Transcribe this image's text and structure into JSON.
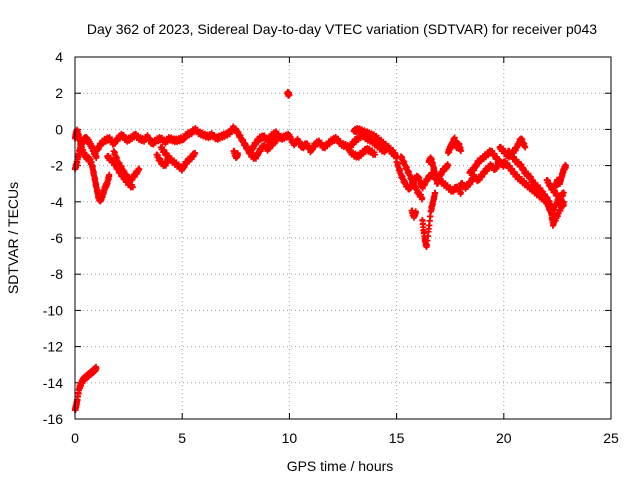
{
  "chart_data": {
    "type": "scatter",
    "title": "Day 362 of 2023, Sidereal Day-to-day VTEC variation (SDTVAR) for receiver p043",
    "xlabel": "GPS time / hours",
    "ylabel": "SDTVAR / TECUs",
    "xlim": [
      0,
      25
    ],
    "ylim": [
      -16,
      4
    ],
    "xticks": [
      0,
      5,
      10,
      15,
      20,
      25
    ],
    "yticks": [
      4,
      2,
      0,
      -2,
      -4,
      -6,
      -8,
      -10,
      -12,
      -14,
      -16
    ],
    "grid": true,
    "marker": "+",
    "series": [
      {
        "name": "SDTVAR",
        "color": "#ff0000",
        "segments": [
          {
            "x": [
              0.0,
              0.05,
              0.1,
              0.2,
              0.3,
              0.4,
              0.5,
              0.6,
              0.7,
              0.8,
              0.9,
              1.0
            ],
            "y": [
              -15.5,
              -15.3,
              -15.0,
              -14.3,
              -14.0,
              -13.8,
              -13.7,
              -13.6,
              -13.5,
              -13.4,
              -13.3,
              -13.2
            ]
          },
          {
            "x": [
              0.0,
              0.05,
              0.1,
              0.15,
              0.2,
              0.3,
              0.4,
              0.5,
              0.6,
              0.7,
              0.8,
              0.9,
              1.0,
              1.1,
              1.2,
              1.3,
              1.4,
              1.5,
              1.6
            ],
            "y": [
              -0.5,
              -0.2,
              -0.1,
              -0.3,
              -0.5,
              -1.0,
              -1.3,
              -1.5,
              -1.6,
              -1.7,
              -2.0,
              -2.6,
              -3.2,
              -3.8,
              -3.9,
              -3.6,
              -3.2,
              -3.0,
              -2.5
            ]
          },
          {
            "x": [
              0.0,
              0.1,
              0.2,
              0.3,
              0.4,
              0.5,
              0.6,
              0.7,
              0.8,
              0.9,
              1.0
            ],
            "y": [
              -2.2,
              -1.8,
              -1.2,
              -0.8,
              -0.6,
              -0.5,
              -0.6,
              -0.8,
              -1.0,
              -1.3,
              -1.5
            ]
          },
          {
            "x": [
              1.0,
              1.2,
              1.4,
              1.6,
              1.8,
              2.0,
              2.2,
              2.4,
              2.6,
              2.8,
              3.0,
              3.2,
              3.4,
              3.6,
              3.8,
              4.0,
              4.2,
              4.4,
              4.6,
              4.8,
              5.0
            ],
            "y": [
              -1.2,
              -0.8,
              -0.6,
              -0.5,
              -0.8,
              -0.5,
              -0.3,
              -0.6,
              -0.5,
              -0.3,
              -0.5,
              -0.6,
              -0.4,
              -0.8,
              -0.6,
              -0.5,
              -0.7,
              -0.5,
              -0.6,
              -0.6,
              -0.5
            ]
          },
          {
            "x": [
              1.8,
              2.0,
              2.2,
              2.4,
              2.6,
              2.8,
              3.0
            ],
            "y": [
              -1.2,
              -1.8,
              -2.2,
              -2.6,
              -2.8,
              -2.5,
              -2.2
            ]
          },
          {
            "x": [
              1.5,
              1.7,
              1.9,
              2.1,
              2.3,
              2.5,
              2.7
            ],
            "y": [
              -1.5,
              -1.7,
              -2.0,
              -2.4,
              -2.7,
              -3.0,
              -3.2
            ]
          },
          {
            "x": [
              4.0,
              4.2,
              4.4,
              4.6,
              4.8,
              5.0,
              5.2,
              5.4,
              5.6
            ],
            "y": [
              -1.0,
              -1.3,
              -1.6,
              -1.8,
              -2.0,
              -2.2,
              -1.8,
              -1.6,
              -1.3
            ]
          },
          {
            "x": [
              3.8,
              4.0,
              4.2,
              4.4
            ],
            "y": [
              -1.4,
              -1.8,
              -2.0,
              -1.5
            ]
          },
          {
            "x": [
              5.0,
              5.2,
              5.4,
              5.6,
              5.8,
              6.0,
              6.2,
              6.4,
              6.6,
              6.8,
              7.0,
              7.2,
              7.4,
              7.6,
              7.8,
              8.0,
              8.2,
              8.4,
              8.6,
              8.8,
              9.0,
              9.2,
              9.4,
              9.6,
              9.8,
              10.0
            ],
            "y": [
              -0.6,
              -0.3,
              -0.2,
              0.0,
              -0.2,
              -0.3,
              -0.4,
              -0.3,
              -0.5,
              -0.4,
              -0.3,
              -0.2,
              0.1,
              -0.2,
              -0.6,
              -1.0,
              -1.2,
              -0.8,
              -0.5,
              -0.4,
              -0.6,
              -0.3,
              -0.2,
              -0.5,
              -0.4,
              -0.3
            ]
          },
          {
            "x": [
              7.4,
              7.5,
              7.6
            ],
            "y": [
              -1.2,
              -1.5,
              -1.4
            ]
          },
          {
            "x": [
              8.0,
              8.2,
              8.4,
              8.6,
              8.8,
              9.0,
              9.2,
              9.4
            ],
            "y": [
              -1.0,
              -1.4,
              -1.6,
              -1.2,
              -0.9,
              -1.1,
              -0.8,
              -0.6
            ]
          },
          {
            "x": [
              9.9,
              10.0
            ],
            "y": [
              2.0,
              1.9
            ]
          },
          {
            "x": [
              10.0,
              10.2,
              10.4,
              10.6,
              10.8,
              11.0,
              11.2,
              11.4,
              11.6,
              11.8,
              12.0,
              12.2,
              12.4,
              12.6,
              12.8,
              13.0,
              13.2,
              13.4,
              13.6,
              13.8,
              14.0,
              14.2,
              14.4,
              14.6,
              14.8,
              15.0
            ],
            "y": [
              -0.4,
              -0.8,
              -0.6,
              -1.0,
              -0.8,
              -1.2,
              -0.8,
              -0.7,
              -1.0,
              -0.8,
              -0.6,
              -0.5,
              -0.8,
              -0.9,
              -1.0,
              -0.7,
              -0.5,
              -0.3,
              -0.5,
              -0.6,
              -0.8,
              -1.0,
              -1.2,
              -1.0,
              -1.3,
              -1.5
            ]
          },
          {
            "x": [
              13.0,
              13.2,
              13.4,
              13.6,
              13.8,
              14.0,
              14.2,
              14.4,
              14.6,
              14.8,
              15.0
            ],
            "y": [
              -0.1,
              0.0,
              -0.1,
              -0.2,
              -0.3,
              -0.4,
              -0.6,
              -0.8,
              -1.0,
              -1.2,
              -1.5
            ]
          },
          {
            "x": [
              12.8,
              13.0,
              13.2,
              13.4,
              13.6,
              13.8,
              14.0
            ],
            "y": [
              -1.2,
              -1.4,
              -1.5,
              -1.3,
              -1.1,
              -1.2,
              -1.4
            ]
          },
          {
            "x": [
              15.0,
              15.2,
              15.4,
              15.6,
              15.8,
              16.0,
              16.2,
              16.4,
              16.6,
              16.8,
              17.0,
              17.2,
              17.4,
              17.6,
              17.8,
              18.0
            ],
            "y": [
              -1.8,
              -2.5,
              -3.0,
              -3.3,
              -2.8,
              -2.6,
              -3.2,
              -2.8,
              -2.5,
              -2.6,
              -2.8,
              -3.0,
              -3.2,
              -3.4,
              -3.2,
              -3.5
            ]
          },
          {
            "x": [
              15.2,
              15.4,
              15.6,
              15.8,
              16.0,
              16.2
            ],
            "y": [
              -1.5,
              -2.0,
              -2.5,
              -3.0,
              -3.5,
              -3.8
            ]
          },
          {
            "x": [
              15.7,
              15.8,
              15.9
            ],
            "y": [
              -4.5,
              -4.8,
              -4.6
            ]
          },
          {
            "x": [
              16.2,
              16.3,
              16.4,
              16.5,
              16.6,
              16.7,
              16.8
            ],
            "y": [
              -5.0,
              -6.0,
              -6.5,
              -5.5,
              -4.5,
              -4.0,
              -3.5
            ]
          },
          {
            "x": [
              16.5,
              16.6,
              16.7,
              16.8,
              16.9,
              17.0,
              17.2,
              17.4
            ],
            "y": [
              -1.8,
              -1.6,
              -2.0,
              -2.5,
              -3.0,
              -2.6,
              -2.2,
              -2.0
            ]
          },
          {
            "x": [
              17.4,
              17.5,
              17.6,
              17.7,
              17.8,
              17.9,
              18.0
            ],
            "y": [
              -1.3,
              -1.0,
              -0.8,
              -0.5,
              -1.0,
              -0.8,
              -1.2
            ]
          },
          {
            "x": [
              18.0,
              18.2,
              18.4,
              18.6,
              18.8,
              19.0,
              19.2,
              19.4,
              19.6,
              19.8,
              20.0
            ],
            "y": [
              -3.0,
              -3.2,
              -3.0,
              -2.6,
              -2.8,
              -2.5,
              -2.2,
              -2.0,
              -2.2,
              -1.8,
              -2.0
            ]
          },
          {
            "x": [
              18.4,
              18.6,
              18.8,
              19.0,
              19.2,
              19.4,
              19.6,
              19.8
            ],
            "y": [
              -2.4,
              -2.2,
              -1.8,
              -1.6,
              -1.4,
              -1.2,
              -1.5,
              -1.8
            ]
          },
          {
            "x": [
              19.8,
              20.0,
              20.2,
              20.4,
              20.6,
              20.8,
              21.0
            ],
            "y": [
              -1.0,
              -1.2,
              -1.5,
              -1.3,
              -1.0,
              -0.5,
              -1.0
            ]
          },
          {
            "x": [
              20.0,
              20.2,
              20.4,
              20.6,
              20.8,
              21.0,
              21.2,
              21.4,
              21.6,
              21.8,
              22.0,
              22.2,
              22.4,
              22.6,
              22.8
            ],
            "y": [
              -1.8,
              -2.0,
              -2.3,
              -2.6,
              -2.8,
              -3.0,
              -3.2,
              -3.4,
              -3.6,
              -3.8,
              -4.0,
              -4.6,
              -4.2,
              -3.8,
              -3.5
            ]
          },
          {
            "x": [
              20.2,
              20.4,
              20.6,
              20.8,
              21.0,
              21.2,
              21.4,
              21.6,
              21.8,
              22.0,
              22.2,
              22.4,
              22.6,
              22.8
            ],
            "y": [
              -1.2,
              -1.5,
              -1.8,
              -2.0,
              -2.4,
              -2.6,
              -3.0,
              -3.2,
              -3.5,
              -3.8,
              -4.2,
              -5.0,
              -4.5,
              -4.0
            ]
          },
          {
            "x": [
              21.4,
              21.6,
              21.8,
              22.0,
              22.2,
              22.3,
              22.4
            ],
            "y": [
              -3.0,
              -3.3,
              -3.6,
              -4.0,
              -4.5,
              -5.3,
              -4.8
            ]
          },
          {
            "x": [
              22.4,
              22.5,
              22.6,
              22.7,
              22.8,
              22.9
            ],
            "y": [
              -3.2,
              -2.8,
              -3.0,
              -2.6,
              -2.2,
              -2.0
            ]
          },
          {
            "x": [
              22.0,
              22.2,
              22.4,
              22.6,
              22.8
            ],
            "y": [
              -2.8,
              -3.2,
              -3.5,
              -3.8,
              -4.2
            ]
          }
        ]
      }
    ]
  }
}
